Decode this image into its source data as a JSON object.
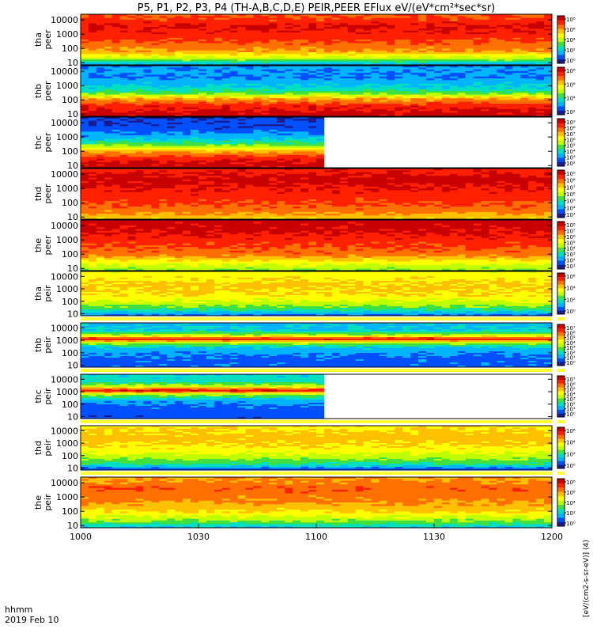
{
  "chart_data": {
    "type": "heatmap",
    "title": "P5, P1, P2, P3, P4 (TH-A,B,C,D,E) PEIR,PEER EFlux eV/(eV*cm²*sec*sr)",
    "x_ticks": [
      "1000",
      "1030",
      "1100",
      "1130",
      "1200"
    ],
    "x_range_minutes": [
      0,
      120
    ],
    "x_footer_lines": [
      "hhmm",
      "2019 Feb 10"
    ],
    "y_scale": "log",
    "y_range_eV": [
      7,
      25000
    ],
    "y_ticks": [
      "10000",
      "1000",
      "100",
      "10"
    ],
    "colorbar_label": "[eV/(cm2-s-sr-eV)]  (4)",
    "colorscale": [
      "#1a1a8c",
      "#0050ff",
      "#00b4ff",
      "#00e0c0",
      "#40e040",
      "#c0ff00",
      "#ffff00",
      "#ffc000",
      "#ff7000",
      "#ff2000",
      "#c80000"
    ],
    "panels": [
      {
        "probe": "tha",
        "species": "peer",
        "colorbar_ticks": [
          "10⁸",
          "10⁶",
          "10⁴",
          "10²",
          "10⁰"
        ],
        "coverage_end_min": 120,
        "gap_below": false,
        "profile": [
          {
            "log_e": 0.85,
            "level": 0.2
          },
          {
            "log_e": 1.2,
            "level": 0.45
          },
          {
            "log_e": 1.8,
            "level": 0.72
          },
          {
            "log_e": 2.6,
            "level": 0.84
          },
          {
            "log_e": 3.5,
            "level": 0.92
          },
          {
            "log_e": 4.2,
            "level": 0.82
          }
        ]
      },
      {
        "probe": "thb",
        "species": "peer",
        "colorbar_ticks": [
          "10⁸",
          "10⁶",
          "10⁴",
          "10²"
        ],
        "coverage_end_min": 120,
        "gap_below": false,
        "profile": [
          {
            "log_e": 0.85,
            "level": 0.95
          },
          {
            "log_e": 1.5,
            "level": 0.9
          },
          {
            "log_e": 2.1,
            "level": 0.7
          },
          {
            "log_e": 2.4,
            "level": 0.45
          },
          {
            "log_e": 2.8,
            "level": 0.3
          },
          {
            "log_e": 3.6,
            "level": 0.18
          },
          {
            "log_e": 4.3,
            "level": 0.2
          }
        ]
      },
      {
        "probe": "thc",
        "species": "peer",
        "colorbar_ticks": [
          "10⁹",
          "10⁸",
          "10⁷",
          "10⁶",
          "10⁵",
          "10⁴",
          "10³",
          "10²"
        ],
        "coverage_end_min": 62,
        "gap_below": false,
        "profile": [
          {
            "log_e": 0.85,
            "level": 0.95
          },
          {
            "log_e": 1.5,
            "level": 0.88
          },
          {
            "log_e": 2.0,
            "level": 0.7
          },
          {
            "log_e": 2.4,
            "level": 0.45
          },
          {
            "log_e": 2.9,
            "level": 0.25
          },
          {
            "log_e": 3.6,
            "level": 0.12
          },
          {
            "log_e": 4.3,
            "level": 0.1
          }
        ]
      },
      {
        "probe": "thd",
        "species": "peer",
        "colorbar_ticks": [
          "10⁹",
          "10⁸",
          "10⁷",
          "10⁶",
          "10⁵",
          "10⁴",
          "10³"
        ],
        "coverage_end_min": 120,
        "gap_below": false,
        "profile": [
          {
            "log_e": 0.85,
            "level": 0.65
          },
          {
            "log_e": 1.5,
            "level": 0.78
          },
          {
            "log_e": 2.2,
            "level": 0.85
          },
          {
            "log_e": 3.0,
            "level": 0.9
          },
          {
            "log_e": 3.6,
            "level": 0.95
          },
          {
            "log_e": 4.3,
            "level": 0.88
          }
        ]
      },
      {
        "probe": "the",
        "species": "peer",
        "colorbar_ticks": [
          "10⁸",
          "10⁷",
          "10⁶",
          "10⁵",
          "10⁴",
          "10³",
          "10²",
          "10¹"
        ],
        "coverage_end_min": 120,
        "gap_below": false,
        "profile": [
          {
            "log_e": 0.85,
            "level": 0.45
          },
          {
            "log_e": 1.3,
            "level": 0.55
          },
          {
            "log_e": 2.0,
            "level": 0.78
          },
          {
            "log_e": 2.8,
            "level": 0.85
          },
          {
            "log_e": 3.6,
            "level": 0.93
          },
          {
            "log_e": 4.3,
            "level": 0.95
          }
        ]
      },
      {
        "probe": "tha",
        "species": "peir",
        "colorbar_ticks": [
          "10⁶",
          "10⁴",
          "10²",
          "10⁰"
        ],
        "coverage_end_min": 120,
        "gap_below": true,
        "profile": [
          {
            "log_e": 0.85,
            "level": 0.15
          },
          {
            "log_e": 1.3,
            "level": 0.35
          },
          {
            "log_e": 1.8,
            "level": 0.5
          },
          {
            "log_e": 2.4,
            "level": 0.62
          },
          {
            "log_e": 3.2,
            "level": 0.66
          },
          {
            "log_e": 4.3,
            "level": 0.58
          }
        ]
      },
      {
        "probe": "thb",
        "species": "peir",
        "colorbar_ticks": [
          "10⁷",
          "10⁶",
          "10⁵",
          "10⁴",
          "10³",
          "10²",
          "10¹",
          "10⁰"
        ],
        "coverage_end_min": 120,
        "gap_below": true,
        "profile": [
          {
            "log_e": 0.85,
            "level": 0.15
          },
          {
            "log_e": 1.5,
            "level": 0.15
          },
          {
            "log_e": 2.4,
            "level": 0.25
          },
          {
            "log_e": 2.8,
            "level": 0.5
          },
          {
            "log_e": 3.1,
            "level": 0.92
          },
          {
            "log_e": 3.4,
            "level": 0.5
          },
          {
            "log_e": 3.8,
            "level": 0.28
          },
          {
            "log_e": 4.3,
            "level": 0.25
          }
        ]
      },
      {
        "probe": "thc",
        "species": "peir",
        "colorbar_ticks": [
          "10⁷",
          "10⁶",
          "10⁵",
          "10⁴",
          "10³",
          "10²",
          "10¹",
          "10⁰"
        ],
        "coverage_end_min": 62,
        "gap_below": true,
        "profile": [
          {
            "log_e": 0.85,
            "level": 0.12
          },
          {
            "log_e": 1.6,
            "level": 0.14
          },
          {
            "log_e": 2.3,
            "level": 0.22
          },
          {
            "log_e": 2.8,
            "level": 0.5
          },
          {
            "log_e": 3.1,
            "level": 0.93
          },
          {
            "log_e": 3.4,
            "level": 0.55
          },
          {
            "log_e": 3.8,
            "level": 0.32
          },
          {
            "log_e": 4.3,
            "level": 0.3
          }
        ]
      },
      {
        "probe": "thd",
        "species": "peir",
        "colorbar_ticks": [
          "10⁶",
          "10⁴",
          "10²",
          "10⁰"
        ],
        "coverage_end_min": 120,
        "gap_below": true,
        "profile": [
          {
            "log_e": 0.85,
            "level": 0.1
          },
          {
            "log_e": 1.3,
            "level": 0.35
          },
          {
            "log_e": 1.9,
            "level": 0.5
          },
          {
            "log_e": 2.6,
            "level": 0.62
          },
          {
            "log_e": 3.4,
            "level": 0.68
          },
          {
            "log_e": 4.3,
            "level": 0.62
          }
        ]
      },
      {
        "probe": "the",
        "species": "peir",
        "colorbar_ticks": [
          "10⁸",
          "10⁶",
          "10⁴",
          "10²",
          "10⁰"
        ],
        "coverage_end_min": 120,
        "gap_below": false,
        "profile": [
          {
            "log_e": 0.85,
            "level": 0.25
          },
          {
            "log_e": 1.3,
            "level": 0.45
          },
          {
            "log_e": 2.0,
            "level": 0.65
          },
          {
            "log_e": 2.8,
            "level": 0.75
          },
          {
            "log_e": 3.6,
            "level": 0.8
          },
          {
            "log_e": 4.3,
            "level": 0.72
          }
        ]
      }
    ]
  }
}
